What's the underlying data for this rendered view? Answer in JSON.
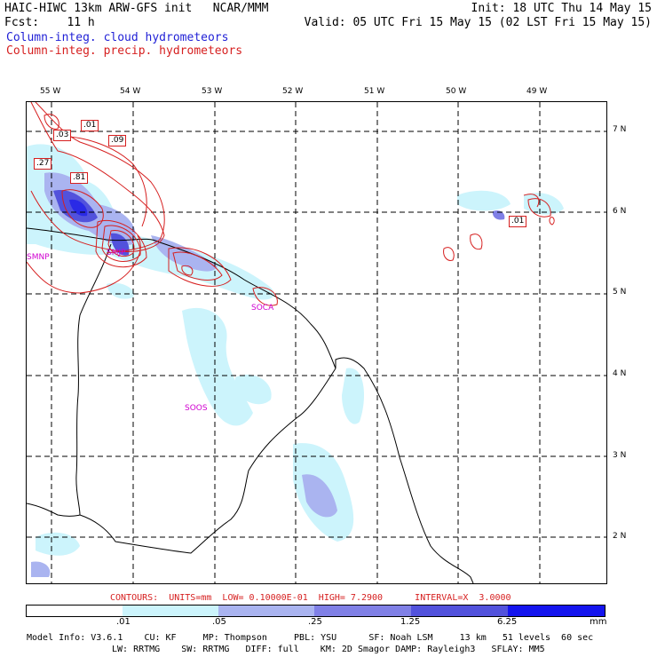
{
  "header": {
    "line1_left": "HAIC-HIWC 13km ARW-GFS init   NCAR/MMM",
    "line1_right": "Init: 18 UTC Thu 14 May 15",
    "line2_left": "Fcst:    11 h",
    "line2_right": "Valid: 05 UTC Fri 15 May 15 (02 LST Fri 15 May 15)",
    "field_cloud": "Column-integ. cloud hydrometeors",
    "field_precip": "Column-integ. precip. hydrometeors"
  },
  "map": {
    "lon_labels": [
      "55 W",
      "54 W",
      "53 W",
      "52 W",
      "51 W",
      "50 W",
      "49 W"
    ],
    "lat_labels": [
      "7 N",
      "6 N",
      "5 N",
      "4 N",
      "3 N",
      "2 N"
    ],
    "stations": [
      "SMNP",
      "SMJP",
      "SOCA",
      "SOOS"
    ],
    "contour_labels": [
      ".03",
      ".01",
      ".09",
      ".27",
      ".81",
      ".01"
    ]
  },
  "contours_info": {
    "text": "CONTOURS:  UNITS=mm  LOW= 0.10000E-01  HIGH= 7.2900      INTERVAL=X  3.0000"
  },
  "colorbar": {
    "ticks": [
      ".01",
      ".05",
      ".25",
      "1.25",
      "6.25"
    ],
    "unit": "mm",
    "colors": [
      "#ffffff",
      "#ccf4fc",
      "#aab4f0",
      "#8080e6",
      "#5252dc",
      "#1414ee"
    ]
  },
  "footer": {
    "line1": "Model Info: V3.6.1    CU: KF     MP: Thompson     PBL: YSU      SF: Noah LSM     13 km   51 levels  60 sec",
    "line2": "LW: RRTMG    SW: RRTMG   DIFF: full    KM: 2D Smagor DAMP: Rayleigh3   SFLAY: MM5"
  }
}
